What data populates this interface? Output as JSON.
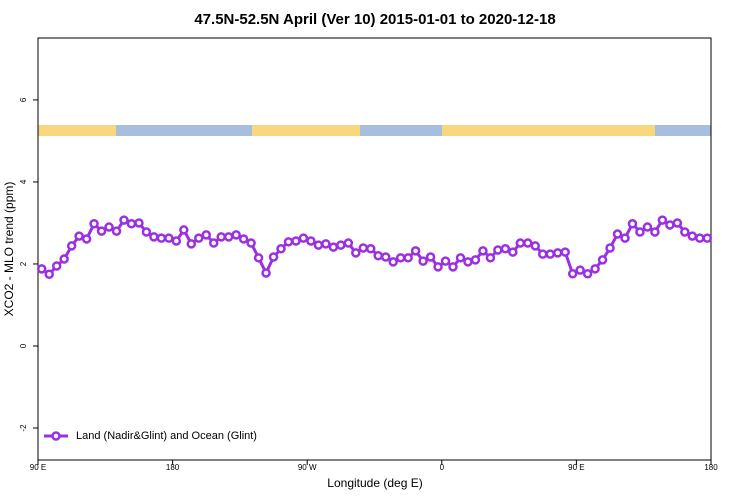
{
  "chart_data": {
    "type": "line",
    "title": "47.5N-52.5N April (Ver 10)   2015-01-01 to 2020-12-18",
    "x_label": "Longitude (deg E)",
    "y_label": "XCO2 - MLO trend (ppm)",
    "xlim": [
      90,
      540
    ],
    "ylim": [
      -2.78,
      7.51
    ],
    "xticks": [
      {
        "value": 90,
        "label": "90 E"
      },
      180,
      {
        "value": 270,
        "label": "90 W"
      },
      {
        "value": 360,
        "label": "0"
      },
      {
        "value": 450,
        "label": "90 E"
      },
      {
        "value": 540,
        "label": "180"
      }
    ],
    "yticks": [
      -2,
      0,
      2,
      4,
      6
    ],
    "legend": "bottomleft",
    "x": [
      92.5,
      97.5,
      102.5,
      107.5,
      112.5,
      117.5,
      122.5,
      127.5,
      132.5,
      137.5,
      142.5,
      147.5,
      152.5,
      157.5,
      162.5,
      167.5,
      172.5,
      177.5,
      182.5,
      187.5,
      192.5,
      197.5,
      202.5,
      207.5,
      212.5,
      217.5,
      222.5,
      227.5,
      232.5,
      237.5,
      242.5,
      247.5,
      252.5,
      257.5,
      262.5,
      267.5,
      272.5,
      277.5,
      282.5,
      287.5,
      292.5,
      297.5,
      302.5,
      307.5,
      312.5,
      317.5,
      322.5,
      327.5,
      332.5,
      337.5,
      342.5,
      347.5,
      352.5,
      357.5,
      362.5,
      367.5,
      372.5,
      377.5,
      382.5,
      387.5,
      392.5,
      397.5,
      402.5,
      407.5,
      412.5,
      417.5,
      422.5,
      427.5,
      432.5,
      437.5,
      442.5,
      447.5,
      452.5,
      457.5,
      462.5,
      467.5,
      472.5,
      477.5,
      482.5,
      487.5,
      492.5,
      497.5,
      502.5,
      507.5,
      512.5,
      517.5,
      522.5,
      527.5,
      532.5,
      537.5
    ],
    "series": [
      {
        "name": "Land (Nadir&Glint) and Ocean (Glint)",
        "color": "#9b30e0",
        "values": [
          1.88,
          1.75,
          1.95,
          2.12,
          2.44,
          2.68,
          2.61,
          2.98,
          2.8,
          2.9,
          2.8,
          3.07,
          2.98,
          3.0,
          2.78,
          2.66,
          2.63,
          2.63,
          2.56,
          2.83,
          2.49,
          2.63,
          2.71,
          2.51,
          2.66,
          2.66,
          2.71,
          2.61,
          2.51,
          2.15,
          1.78,
          2.17,
          2.37,
          2.54,
          2.56,
          2.63,
          2.56,
          2.46,
          2.49,
          2.41,
          2.46,
          2.51,
          2.27,
          2.39,
          2.37,
          2.2,
          2.17,
          2.05,
          2.15,
          2.15,
          2.32,
          2.07,
          2.17,
          1.93,
          2.07,
          1.93,
          2.15,
          2.05,
          2.1,
          2.32,
          2.15,
          2.34,
          2.37,
          2.29,
          2.51,
          2.51,
          2.44,
          2.24,
          2.24,
          2.27,
          2.29,
          1.76,
          1.85,
          1.76,
          1.88,
          2.1,
          2.39,
          2.73,
          2.63,
          2.98,
          2.78,
          2.9,
          2.78,
          3.07,
          2.95,
          3.0,
          2.78,
          2.68,
          2.63,
          2.63
        ]
      }
    ]
  }
}
